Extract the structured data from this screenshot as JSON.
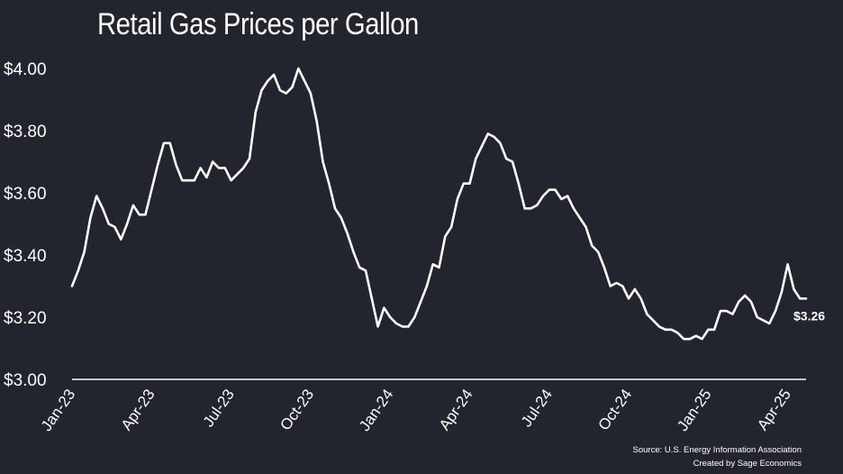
{
  "chart_data": {
    "type": "line",
    "title": "Retail Gas Prices per Gallon",
    "xlabel": "",
    "ylabel": "",
    "ylim": [
      3.0,
      4.0
    ],
    "yticks": [
      3.0,
      3.2,
      3.4,
      3.6,
      3.8,
      4.0
    ],
    "ytick_labels": [
      "$3.00",
      "$3.20",
      "$3.40",
      "$3.60",
      "$3.80",
      "$4.00"
    ],
    "xtick_labels": [
      "Jan-23",
      "Apr-23",
      "Jul-23",
      "Oct-23",
      "Jan-24",
      "Apr-24",
      "Jul-24",
      "Oct-24",
      "Jan-25",
      "Apr-25"
    ],
    "xtick_dates": [
      "2023-01-02",
      "2023-04-03",
      "2023-07-03",
      "2023-10-02",
      "2024-01-01",
      "2024-04-01",
      "2024-07-01",
      "2024-09-30",
      "2024-12-30",
      "2025-03-31"
    ],
    "grid": false,
    "line_color": "#ffffff",
    "background_color": "#22252d",
    "end_label": "$3.26",
    "series": [
      {
        "dates": [
          "2023-01-02",
          "2023-01-09",
          "2023-01-16",
          "2023-01-23",
          "2023-01-30",
          "2023-02-06",
          "2023-02-13",
          "2023-02-20",
          "2023-02-27",
          "2023-03-06",
          "2023-03-13",
          "2023-03-20",
          "2023-03-27",
          "2023-04-03",
          "2023-04-10",
          "2023-04-17",
          "2023-04-24",
          "2023-05-01",
          "2023-05-08",
          "2023-05-15",
          "2023-05-22",
          "2023-05-29",
          "2023-06-05",
          "2023-06-12",
          "2023-06-19",
          "2023-06-26",
          "2023-07-03",
          "2023-07-10",
          "2023-07-17",
          "2023-07-24",
          "2023-07-31",
          "2023-08-07",
          "2023-08-14",
          "2023-08-21",
          "2023-08-28",
          "2023-09-04",
          "2023-09-11",
          "2023-09-18",
          "2023-09-25",
          "2023-10-02",
          "2023-10-09",
          "2023-10-16",
          "2023-10-23",
          "2023-10-30",
          "2023-11-06",
          "2023-11-13",
          "2023-11-20",
          "2023-11-27",
          "2023-12-04",
          "2023-12-11",
          "2023-12-18",
          "2023-12-25",
          "2024-01-01",
          "2024-01-08",
          "2024-01-15",
          "2024-01-22",
          "2024-01-29",
          "2024-02-05",
          "2024-02-12",
          "2024-02-19",
          "2024-02-26",
          "2024-03-04",
          "2024-03-11",
          "2024-03-18",
          "2024-03-25",
          "2024-04-01",
          "2024-04-08",
          "2024-04-15",
          "2024-04-22",
          "2024-04-29",
          "2024-05-06",
          "2024-05-13",
          "2024-05-20",
          "2024-05-27",
          "2024-06-03",
          "2024-06-10",
          "2024-06-17",
          "2024-06-24",
          "2024-07-01",
          "2024-07-08",
          "2024-07-15",
          "2024-07-22",
          "2024-07-29",
          "2024-08-05",
          "2024-08-12",
          "2024-08-19",
          "2024-08-26",
          "2024-09-02",
          "2024-09-09",
          "2024-09-16",
          "2024-09-23",
          "2024-09-30",
          "2024-10-07",
          "2024-10-14",
          "2024-10-21",
          "2024-10-28",
          "2024-11-04",
          "2024-11-11",
          "2024-11-18",
          "2024-11-25",
          "2024-12-02",
          "2024-12-09",
          "2024-12-16",
          "2024-12-23",
          "2024-12-30",
          "2025-01-06",
          "2025-01-13",
          "2025-01-20",
          "2025-01-27",
          "2025-02-03",
          "2025-02-10",
          "2025-02-17",
          "2025-02-24",
          "2025-03-03",
          "2025-03-10",
          "2025-03-17",
          "2025-03-24",
          "2025-03-31",
          "2025-04-07",
          "2025-04-14",
          "2025-04-21"
        ],
        "values": [
          3.3,
          3.35,
          3.41,
          3.52,
          3.59,
          3.55,
          3.5,
          3.49,
          3.45,
          3.5,
          3.56,
          3.53,
          3.53,
          3.61,
          3.69,
          3.76,
          3.76,
          3.69,
          3.64,
          3.64,
          3.64,
          3.68,
          3.65,
          3.7,
          3.68,
          3.68,
          3.64,
          3.66,
          3.68,
          3.71,
          3.86,
          3.93,
          3.96,
          3.98,
          3.93,
          3.92,
          3.94,
          4.0,
          3.96,
          3.92,
          3.83,
          3.7,
          3.63,
          3.55,
          3.52,
          3.47,
          3.41,
          3.36,
          3.35,
          3.26,
          3.17,
          3.23,
          3.2,
          3.18,
          3.17,
          3.17,
          3.2,
          3.25,
          3.3,
          3.37,
          3.36,
          3.46,
          3.49,
          3.58,
          3.63,
          3.63,
          3.71,
          3.75,
          3.79,
          3.78,
          3.76,
          3.71,
          3.7,
          3.63,
          3.55,
          3.55,
          3.56,
          3.59,
          3.61,
          3.61,
          3.58,
          3.59,
          3.55,
          3.52,
          3.49,
          3.43,
          3.41,
          3.36,
          3.3,
          3.31,
          3.3,
          3.26,
          3.29,
          3.26,
          3.21,
          3.19,
          3.17,
          3.16,
          3.16,
          3.15,
          3.13,
          3.13,
          3.14,
          3.13,
          3.16,
          3.16,
          3.22,
          3.22,
          3.21,
          3.25,
          3.27,
          3.25,
          3.2,
          3.19,
          3.18,
          3.22,
          3.28,
          3.37,
          3.29,
          3.26,
          3.26
        ]
      }
    ]
  },
  "source": {
    "line1": "Source: U.S. Energy Information Association",
    "line2": "Created by Sage Economics"
  }
}
